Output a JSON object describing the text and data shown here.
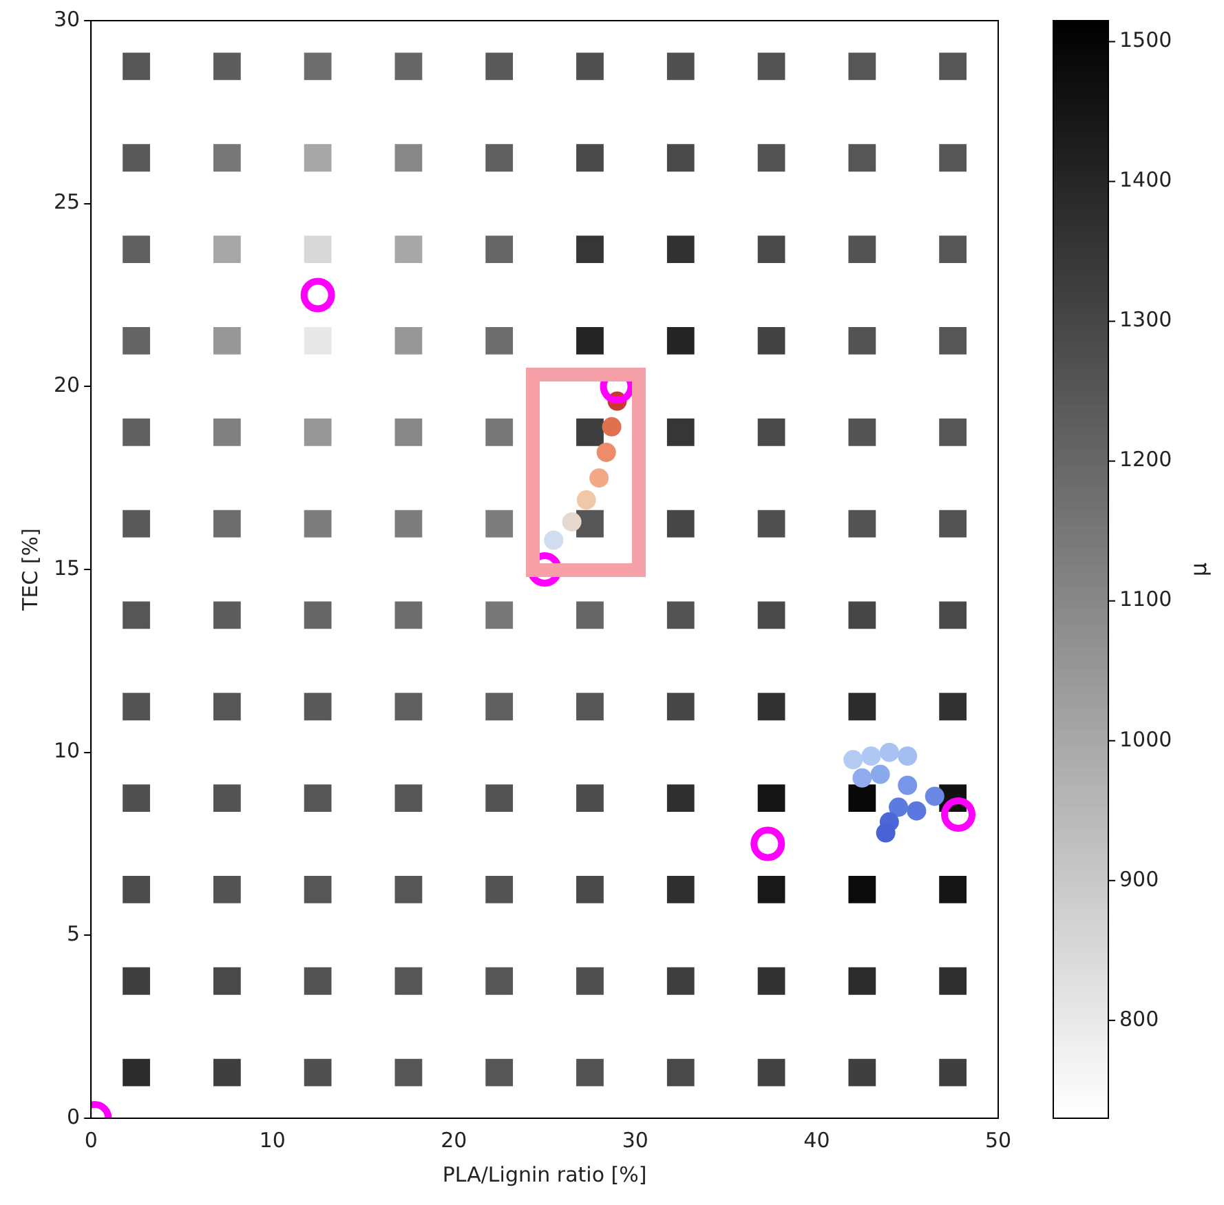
{
  "chart_data": {
    "type": "scatter",
    "xlabel": "PLA/Lignin ratio [%]",
    "ylabel": "TEC [%]",
    "clabel": "μ",
    "xlim": [
      0,
      50
    ],
    "xticks": [
      0,
      10,
      20,
      30,
      40,
      50
    ],
    "ylim": [
      0,
      30
    ],
    "yticks": [
      0,
      5,
      10,
      15,
      20,
      25,
      30
    ],
    "clim": [
      730,
      1515
    ],
    "cticks": [
      800,
      900,
      1000,
      1100,
      1200,
      1300,
      1400,
      1500
    ],
    "grid": false,
    "legend": false,
    "marker": "circle",
    "series": [
      {
        "marker": "square",
        "colors": [
          "#565656",
          "#5d5d5d",
          "#6d6d6d",
          "#666666",
          "#595959",
          "#505050",
          "#505050",
          "#535353",
          "#565656",
          "#565656",
          "#595959",
          "#777777",
          "#a7a7a7",
          "#878787",
          "#606060",
          "#494949",
          "#494949",
          "#535353",
          "#565656",
          "#565656",
          "#606060",
          "#a7a7a7",
          "#d8d8d8",
          "#a7a7a7",
          "#666666",
          "#363636",
          "#323232",
          "#494949",
          "#535353",
          "#565656",
          "#636363",
          "#979797",
          "#e8e8e8",
          "#979797",
          "#6d6d6d",
          "#252525",
          "#252525",
          "#434343",
          "#535353",
          "#565656",
          "#606060",
          "#808080",
          "#979797",
          "#878787",
          "#777777",
          "#3f3f3f",
          "#363636",
          "#494949",
          "#535353",
          "#565656",
          "#595959",
          "#6d6d6d",
          "#7d7d7d",
          "#7d7d7d",
          "#7d7d7d",
          "#565656",
          "#464646",
          "#505050",
          "#535353",
          "#535353",
          "#565656",
          "#5d5d5d",
          "#666666",
          "#6d6d6d",
          "#777777",
          "#666666",
          "#535353",
          "#494949",
          "#464646",
          "#494949",
          "#535353",
          "#565656",
          "#595959",
          "#606060",
          "#606060",
          "#565656",
          "#464646",
          "#323232",
          "#2c2c2c",
          "#323232",
          "#505050",
          "#535353",
          "#565656",
          "#565656",
          "#535353",
          "#4c4c4c",
          "#2f2f2f",
          "#151515",
          "#080808",
          "#121212",
          "#4c4c4c",
          "#535353",
          "#565656",
          "#565656",
          "#535353",
          "#494949",
          "#2f2f2f",
          "#181818",
          "#0b0b0b",
          "#151515",
          "#3f3f3f",
          "#494949",
          "#535353",
          "#565656",
          "#565656",
          "#505050",
          "#3f3f3f",
          "#323232",
          "#2c2c2c",
          "#2f2f2f",
          "#2c2c2c",
          "#3f3f3f",
          "#505050",
          "#565656",
          "#565656",
          "#535353",
          "#494949",
          "#434343",
          "#3f3f3f",
          "#3f3f3f"
        ],
        "x": [
          2.5,
          7.5,
          12.5,
          17.5,
          22.5,
          27.5,
          32.5,
          37.5,
          42.5,
          47.5,
          2.5,
          7.5,
          12.5,
          17.5,
          22.5,
          27.5,
          32.5,
          37.5,
          42.5,
          47.5,
          2.5,
          7.5,
          12.5,
          17.5,
          22.5,
          27.5,
          32.5,
          37.5,
          42.5,
          47.5,
          2.5,
          7.5,
          12.5,
          17.5,
          22.5,
          27.5,
          32.5,
          37.5,
          42.5,
          47.5,
          2.5,
          7.5,
          12.5,
          17.5,
          22.5,
          27.5,
          32.5,
          37.5,
          42.5,
          47.5,
          2.5,
          7.5,
          12.5,
          17.5,
          22.5,
          27.5,
          32.5,
          37.5,
          42.5,
          47.5,
          2.5,
          7.5,
          12.5,
          17.5,
          22.5,
          27.5,
          32.5,
          37.5,
          42.5,
          47.5,
          2.5,
          7.5,
          12.5,
          17.5,
          22.5,
          27.5,
          32.5,
          37.5,
          42.5,
          47.5,
          2.5,
          7.5,
          12.5,
          17.5,
          22.5,
          27.5,
          32.5,
          37.5,
          42.5,
          47.5,
          2.5,
          7.5,
          12.5,
          17.5,
          22.5,
          27.5,
          32.5,
          37.5,
          42.5,
          47.5,
          2.5,
          7.5,
          12.5,
          17.5,
          22.5,
          27.5,
          32.5,
          37.5,
          42.5,
          47.5,
          2.5,
          7.5,
          12.5,
          17.5,
          22.5,
          27.5,
          32.5,
          37.5,
          42.5,
          47.5
        ],
        "values": [
          28.75,
          28.75,
          28.75,
          28.75,
          28.75,
          28.75,
          28.75,
          28.75,
          28.75,
          28.75,
          26.25,
          26.25,
          26.25,
          26.25,
          26.25,
          26.25,
          26.25,
          26.25,
          26.25,
          26.25,
          23.75,
          23.75,
          23.75,
          23.75,
          23.75,
          23.75,
          23.75,
          23.75,
          23.75,
          23.75,
          21.25,
          21.25,
          21.25,
          21.25,
          21.25,
          21.25,
          21.25,
          21.25,
          21.25,
          21.25,
          18.75,
          18.75,
          18.75,
          18.75,
          18.75,
          18.75,
          18.75,
          18.75,
          18.75,
          18.75,
          16.25,
          16.25,
          16.25,
          16.25,
          16.25,
          16.25,
          16.25,
          16.25,
          16.25,
          16.25,
          13.75,
          13.75,
          13.75,
          13.75,
          13.75,
          13.75,
          13.75,
          13.75,
          13.75,
          13.75,
          11.25,
          11.25,
          11.25,
          11.25,
          11.25,
          11.25,
          11.25,
          11.25,
          11.25,
          11.25,
          8.75,
          8.75,
          8.75,
          8.75,
          8.75,
          8.75,
          8.75,
          8.75,
          8.75,
          8.75,
          6.25,
          6.25,
          6.25,
          6.25,
          6.25,
          6.25,
          6.25,
          6.25,
          6.25,
          6.25,
          3.75,
          3.75,
          3.75,
          3.75,
          3.75,
          3.75,
          3.75,
          3.75,
          3.75,
          3.75,
          1.25,
          1.25,
          1.25,
          1.25,
          1.25,
          1.25,
          1.25,
          1.25,
          1.25,
          1.25
        ],
        "cvalues": [
          1250,
          1230,
          1180,
          1200,
          1240,
          1270,
          1270,
          1260,
          1250,
          1250,
          1240,
          1150,
          1000,
          1100,
          1220,
          1290,
          1290,
          1260,
          1250,
          1250,
          1220,
          1000,
          850,
          1000,
          1200,
          1350,
          1360,
          1290,
          1260,
          1250,
          1210,
          1050,
          800,
          1050,
          1180,
          1400,
          1400,
          1310,
          1260,
          1250,
          1220,
          1120,
          1050,
          1100,
          1150,
          1320,
          1350,
          1290,
          1260,
          1250,
          1240,
          1180,
          1130,
          1130,
          1130,
          1250,
          1300,
          1270,
          1260,
          1260,
          1250,
          1230,
          1200,
          1180,
          1150,
          1200,
          1260,
          1290,
          1300,
          1290,
          1260,
          1250,
          1240,
          1220,
          1220,
          1250,
          1300,
          1360,
          1380,
          1360,
          1270,
          1260,
          1250,
          1250,
          1260,
          1280,
          1370,
          1450,
          1490,
          1460,
          1280,
          1260,
          1250,
          1250,
          1260,
          1290,
          1370,
          1440,
          1480,
          1450,
          1320,
          1290,
          1260,
          1250,
          1250,
          1270,
          1320,
          1360,
          1380,
          1370,
          1380,
          1320,
          1270,
          1250,
          1250,
          1260,
          1290,
          1310,
          1320,
          1320
        ]
      },
      {
        "x": [
          25.5,
          26.5,
          27.3,
          28,
          28.4,
          28.7,
          29
        ],
        "values": [
          15.8,
          16.3,
          16.9,
          17.5,
          18.2,
          18.9,
          19.6
        ],
        "colors": [
          "#d0dcf0",
          "#e6d8cc",
          "#f0c8a8",
          "#f2aa86",
          "#ec8c68",
          "#e0704e",
          "#c83a30"
        ]
      },
      {
        "x": [
          42,
          43,
          44,
          45,
          42.5,
          43.5,
          45,
          46.5,
          44.5,
          45.5,
          44,
          43.8
        ],
        "values": [
          9.8,
          9.9,
          10,
          9.9,
          9.3,
          9.4,
          9.1,
          8.8,
          8.5,
          8.4,
          8.1,
          7.8
        ],
        "colors": [
          "#b4ccf4",
          "#b0c8f4",
          "#a8c2f2",
          "#a4bef2",
          "#90acee",
          "#8aa8ec",
          "#7896e8",
          "#6a88e4",
          "#5c7ae0",
          "#5a78de",
          "#4c68d8",
          "#4862d4"
        ]
      },
      {
        "marker": "circle",
        "color": "#ff00ff",
        "x": [
          12.5,
          29,
          25,
          37.3,
          47.8,
          0.2
        ],
        "values": [
          22.5,
          20,
          15,
          7.5,
          8.3,
          0
        ]
      }
    ]
  }
}
